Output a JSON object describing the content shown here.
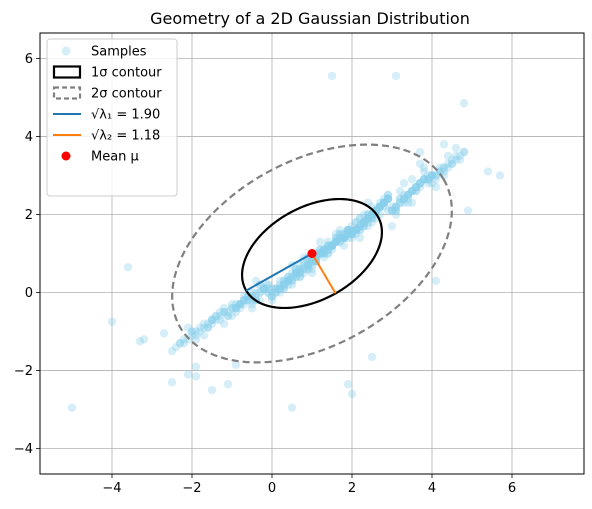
{
  "chart_data": {
    "type": "scatter",
    "title": "Geometry of a 2D Gaussian Distribution",
    "xlabel": "",
    "ylabel": "",
    "xlim": [
      -5.8,
      7.8
    ],
    "ylim": [
      -4.65,
      6.65
    ],
    "xticks": [
      -4,
      -2,
      0,
      2,
      4,
      6
    ],
    "yticks": [
      -4,
      -2,
      0,
      2,
      4,
      6
    ],
    "grid": true,
    "legend_position": "top-left",
    "mean": [
      1.0,
      1.0
    ],
    "ellipse_angle_deg": 30,
    "sqrt_lambda1": 1.9,
    "sqrt_lambda2": 1.18,
    "legend": [
      {
        "key": "samples",
        "label": "Samples",
        "kind": "marker",
        "color": "#87ceeb"
      },
      {
        "key": "c1",
        "label": "1σ contour",
        "kind": "solid-box",
        "color": "#000000"
      },
      {
        "key": "c2",
        "label": "2σ contour",
        "kind": "dashed-box",
        "color": "#808080"
      },
      {
        "key": "l1",
        "label": "√λ₁ = 1.90",
        "kind": "line",
        "color": "#1f77b4"
      },
      {
        "key": "l2",
        "label": "√λ₂ = 1.18",
        "kind": "line",
        "color": "#ff7f0e"
      },
      {
        "key": "mean",
        "label": "Mean μ",
        "kind": "dot",
        "color": "#ff0000"
      }
    ],
    "colors": {
      "samples": "#87ceeb",
      "contour1": "#000000",
      "contour2": "#808080",
      "axis1": "#1f77b4",
      "axis2": "#ff7f0e",
      "mean": "#ff0000",
      "grid": "#b0b0b0"
    },
    "samples_x": [
      1.2,
      2.4,
      0.5,
      -0.3,
      3.1,
      1.8,
      0.9,
      -1.2,
      2.9,
      4.1,
      0.2,
      1.5,
      2.2,
      -0.8,
      3.5,
      1.1,
      0.0,
      2.7,
      1.9,
      -1.5,
      3.8,
      0.7,
      2.0,
      1.3,
      -0.5,
      2.5,
      3.3,
      0.4,
      1.7,
      -2.1,
      4.5,
      2.8,
      0.6,
      1.0,
      -0.2,
      3.0,
      2.1,
      1.4,
      -1.0,
      3.6,
      0.3,
      2.6,
      1.6,
      -0.6,
      4.2,
      2.3,
      0.8,
      1.2,
      -1.7,
      3.2,
      1.9,
      0.1,
      2.4,
      -0.9,
      3.9,
      1.5,
      0.5,
      2.9,
      -0.4,
      4.8,
      2.0,
      1.1,
      -1.3,
      3.4,
      0.7,
      2.6,
      1.8,
      -0.1,
      4.0,
      2.2,
      0.9,
      1.6,
      -2.3,
      3.7,
      2.5,
      0.2,
      1.3,
      -0.7,
      4.4,
      2.8,
      1.0,
      0.4,
      -1.1,
      3.1,
      2.1,
      1.4,
      -0.3,
      3.5,
      0.6,
      2.7,
      1.7,
      -1.6,
      4.3,
      2.4,
      0.8,
      1.9,
      -0.5,
      3.3,
      2.0,
      0.0,
      1.2,
      -2.0,
      3.8,
      2.3,
      1.5,
      0.3,
      -0.8,
      4.6,
      2.6,
      1.1,
      -1.4,
      3.0,
      0.7,
      2.2,
      1.8,
      -0.2,
      3.6,
      2.9,
      0.5,
      1.4,
      -1.9,
      4.1,
      2.5,
      0.9,
      1.6,
      -0.6,
      3.4,
      2.1,
      0.1,
      1.3,
      -1.2,
      3.9,
      2.7,
      1.0,
      0.6,
      -0.4,
      4.7,
      2.4,
      1.7,
      -1.8,
      3.2,
      0.8,
      2.0,
      1.5,
      -0.9,
      3.7,
      2.8,
      0.2,
      1.1,
      -2.5,
      4.2,
      2.3,
      1.9,
      -0.1,
      3.5,
      0.4,
      2.6,
      1.2,
      -1.0,
      4.0,
      2.2,
      0.7,
      1.8,
      -0.7,
      3.1,
      2.9,
      0.3,
      1.4,
      -1.5,
      3.8,
      2.5,
      1.0,
      0.0,
      -0.3,
      4.5,
      2.1,
      1.6,
      -2.2,
      3.3,
      0.9,
      2.7,
      1.3,
      -0.5,
      3.6,
      2.4,
      0.6,
      1.7,
      -1.3,
      4.3,
      2.0,
      1.1,
      -0.8,
      3.0,
      0.5,
      2.3,
      1.9,
      -1.7,
      3.9,
      2.6,
      0.1,
      1.2,
      -0.2,
      4.8,
      2.8,
      1.5,
      -1.1,
      3.4,
      0.8,
      2.2,
      1.0,
      -0.6,
      3.7,
      2.5,
      0.4,
      1.8,
      -2.0,
      4.1,
      2.1,
      1.4,
      -0.4,
      3.2,
      0.7,
      2.9,
      1.6,
      -0.9,
      3.5,
      2.3,
      0.2,
      1.3,
      -1.6,
      4.4,
      2.7,
      1.0,
      0.3,
      -0.1,
      3.8,
      2.0,
      1.7,
      -1.4,
      3.1,
      0.6,
      2.4,
      1.2,
      -0.7,
      4.0,
      2.6,
      0.9,
      1.9,
      -1.9,
      3.6,
      2.2,
      1.1,
      0.0,
      -0.5,
      4.6,
      2.8,
      1.5,
      -1.2,
      3.3,
      0.5,
      2.1,
      1.8,
      -0.3,
      3.9,
      2.5,
      0.1,
      1.4,
      -2.4,
      4.2,
      2.3,
      1.0,
      0.7,
      -0.8,
      3.4,
      2.9,
      1.6,
      -1.0,
      3.7,
      0.4,
      2.0,
      1.3,
      -1.5,
      4.5,
      2.7,
      0.8,
      1.9,
      -0.2,
      3.0,
      2.4,
      0.2,
      1.1,
      -1.8,
      3.8,
      2.6,
      1.7,
      -0.6,
      3.5,
      0.9,
      2.2,
      1.2,
      -0.4,
      4.3,
      2.8,
      0.6,
      1.5,
      -2.1,
      3.2,
      2.1,
      1.0,
      0.3,
      -1.3,
      4.0,
      2.5,
      1.8,
      -0.9,
      3.6,
      0.7,
      2.3,
      1.4,
      -0.1,
      3.9,
      2.7,
      0.0,
      1.6,
      -1.7,
      4.7,
      2.0,
      1.2,
      -0.5,
      3.1,
      0.5,
      2.9,
      1.9,
      -1.1,
      3.4,
      2.4,
      0.9,
      1.3,
      -2.3,
      4.1,
      2.6,
      1.5,
      -0.7,
      3.7,
      0.3,
      2.2,
      1.0,
      -0.3,
      3.3,
      2.8,
      0.6,
      1.7,
      -1.4,
      4.4,
      2.1,
      1.1,
      0.1,
      -0.8,
      3.8,
      2.5,
      1.8,
      -1.6,
      3.0,
      0.8,
      2.3,
      1.4,
      -0.2,
      4.2,
      2.7,
      0.4,
      1.2,
      -1.9,
      3.5,
      2.0,
      1.6,
      -0.6,
      3.6,
      0.2,
      2.4,
      1.9,
      -1.0,
      4.6,
      2.9,
      0.7,
      1.3,
      -0.4,
      3.2,
      2.6,
      1.0,
      0.5,
      -2.0,
      3.9,
      2.2,
      1.5,
      -1.2,
      3.4,
      0.9,
      2.8,
      1.7,
      -0.1,
      4.0,
      2.5,
      0.3,
      1.1,
      -1.5,
      3.7,
      2.1,
      1.8,
      -0.9,
      3.1,
      0.6,
      2.3,
      1.4,
      -0.5,
      4.3,
      2.7,
      0.0,
      1.6,
      -2.2,
      3.3,
      2.4,
      1.2,
      0.4,
      -0.7,
      -5.0,
      -4.0,
      -3.2,
      -3.3,
      -2.1,
      -1.9,
      -3.6,
      5.4,
      5.7,
      4.9,
      4.8,
      3.1,
      2.0,
      1.9,
      1.5,
      2.5,
      -1.9,
      -2.5,
      0.5,
      -2.7,
      -1.1,
      -1.5,
      -0.9,
      4.1,
      4.3,
      3.7
    ],
    "samples_y": [
      1.0,
      1.8,
      0.5,
      0.2,
      2.1,
      1.4,
      0.9,
      -0.4,
      2.5,
      2.9,
      0.1,
      1.2,
      1.9,
      -0.3,
      2.3,
      0.8,
      -0.1,
      2.0,
      1.6,
      -0.8,
      3.2,
      0.4,
      1.5,
      1.1,
      0.0,
      2.2,
      2.8,
      0.3,
      1.3,
      -0.9,
      3.4,
      2.4,
      0.6,
      0.7,
      0.1,
      1.7,
      1.6,
      1.0,
      -0.6,
      2.7,
      0.2,
      1.9,
      1.4,
      -0.2,
      3.1,
      1.8,
      0.5,
      1.3,
      -1.1,
      2.6,
      1.5,
      0.0,
      2.3,
      -0.4,
      3.0,
      1.1,
      0.7,
      2.1,
      0.3,
      3.6,
      1.7,
      0.9,
      -0.7,
      2.4,
      0.4,
      2.0,
      1.2,
      0.2,
      2.8,
      1.4,
      0.8,
      1.5,
      -1.3,
      3.3,
      1.9,
      0.0,
      1.0,
      -0.1,
      3.5,
      2.2,
      0.6,
      0.4,
      -0.5,
      2.0,
      1.8,
      1.3,
      -0.2,
      2.9,
      0.5,
      2.3,
      1.6,
      -0.9,
      3.0,
      1.7,
      0.9,
      1.4,
      -0.3,
      2.5,
      1.5,
      -0.2,
      1.1,
      -1.0,
      3.1,
      2.0,
      1.2,
      0.3,
      -0.4,
      3.7,
      2.1,
      0.8,
      -0.6,
      2.2,
      0.6,
      1.6,
      1.4,
      0.1,
      2.6,
      2.4,
      0.2,
      1.0,
      -1.2,
      2.7,
      1.8,
      0.7,
      1.3,
      -0.1,
      2.3,
      1.5,
      0.1,
      0.9,
      -0.8,
      2.9,
      2.2,
      0.5,
      0.6,
      -0.2,
      3.4,
      1.9,
      1.3,
      -0.9,
      2.4,
      0.8,
      1.6,
      1.2,
      -0.5,
      2.8,
      2.3,
      0.3,
      0.9,
      -1.5,
      3.2,
      1.7,
      1.5,
      0.0,
      2.6,
      0.4,
      2.1,
      1.0,
      -0.3,
      3.0,
      1.6,
      0.7,
      1.4,
      -0.2,
      2.1,
      2.5,
      0.1,
      1.2,
      -0.7,
      2.9,
      2.0,
      0.9,
      0.0,
      0.2,
      3.3,
      1.8,
      1.3,
      -1.2,
      2.3,
      0.6,
      2.2,
      1.1,
      -0.4,
      2.7,
      1.9,
      0.5,
      1.5,
      -0.6,
      3.1,
      1.4,
      0.8,
      -0.3,
      2.1,
      0.3,
      1.7,
      1.6,
      -0.8,
      2.8,
      2.1,
      0.0,
      1.0,
      0.1,
      3.6,
      2.3,
      1.2,
      -0.6,
      2.5,
      0.7,
      1.9,
      0.9,
      -0.1,
      2.7,
      2.0,
      0.3,
      1.4,
      -1.0,
      3.0,
      1.6,
      1.1,
      -0.2,
      2.4,
      0.5,
      2.4,
      1.3,
      -0.4,
      2.6,
      1.8,
      0.2,
      1.1,
      -0.9,
      3.2,
      2.2,
      0.8,
      0.2,
      0.0,
      2.9,
      1.5,
      1.4,
      -0.7,
      2.2,
      0.4,
      2.0,
      1.0,
      -0.2,
      3.0,
      2.1,
      0.6,
      1.5,
      -1.1,
      2.6,
      1.7,
      1.0,
      0.1,
      -0.1,
      3.4,
      2.3,
      1.2,
      -0.5,
      2.4,
      0.3,
      1.6,
      1.4,
      0.0,
      2.9,
      1.9,
      0.1,
      1.1,
      -1.4,
      3.1,
      1.8,
      0.9,
      0.5,
      -0.3,
      2.5,
      2.4,
      1.3,
      -0.4,
      2.8,
      0.2,
      1.5,
      1.0,
      -0.7,
      3.3,
      2.2,
      0.6,
      1.6,
      0.1,
      2.1,
      2.0,
      0.1,
      0.8,
      -1.0,
      2.9,
      2.1,
      1.4,
      -0.1,
      2.6,
      0.7,
      1.7,
      1.1,
      0.0,
      3.2,
      2.3,
      0.4,
      1.2,
      -1.2,
      2.3,
      1.6,
      0.8,
      0.3,
      -0.5,
      3.0,
      2.0,
      1.5,
      -0.4,
      2.7,
      0.5,
      1.8,
      1.2,
      0.1,
      2.9,
      2.2,
      -0.1,
      1.4,
      -0.9,
      3.5,
      1.5,
      1.0,
      -0.2,
      2.2,
      0.4,
      2.4,
      1.6,
      -0.6,
      2.5,
      1.9,
      0.7,
      1.0,
      -1.3,
      3.0,
      2.1,
      1.2,
      -0.3,
      2.8,
      0.1,
      1.7,
      0.8,
      0.0,
      2.4,
      2.3,
      0.5,
      1.4,
      -0.6,
      3.3,
      1.6,
      0.9,
      0.1,
      -0.3,
      2.9,
      2.0,
      1.5,
      -0.8,
      2.1,
      0.6,
      1.8,
      1.2,
      0.1,
      3.1,
      2.2,
      0.3,
      1.0,
      -1.0,
      2.6,
      1.5,
      1.3,
      -0.2,
      2.7,
      0.1,
      1.9,
      1.6,
      -0.4,
      3.5,
      2.4,
      0.6,
      1.1,
      -0.1,
      2.3,
      2.1,
      0.8,
      0.4,
      -1.1,
      2.9,
      1.7,
      1.2,
      -0.5,
      2.5,
      0.7,
      2.3,
      1.5,
      0.2,
      3.0,
      2.0,
      0.2,
      0.9,
      -0.7,
      2.8,
      1.6,
      1.4,
      -0.3,
      2.2,
      0.5,
      1.8,
      1.1,
      -0.1,
      3.2,
      2.2,
      -0.1,
      1.3,
      -1.3,
      2.4,
      1.9,
      1.0,
      0.3,
      -0.2,
      -2.95,
      -0.75,
      -1.2,
      -1.25,
      -2.1,
      -2.15,
      0.65,
      3.1,
      3.0,
      2.1,
      4.85,
      5.55,
      -2.6,
      -2.35,
      5.55,
      -1.65,
      -1.9,
      -2.3,
      -2.95,
      -1.05,
      -2.35,
      -2.5,
      -1.85,
      0.3,
      3.8,
      3.6
    ]
  }
}
